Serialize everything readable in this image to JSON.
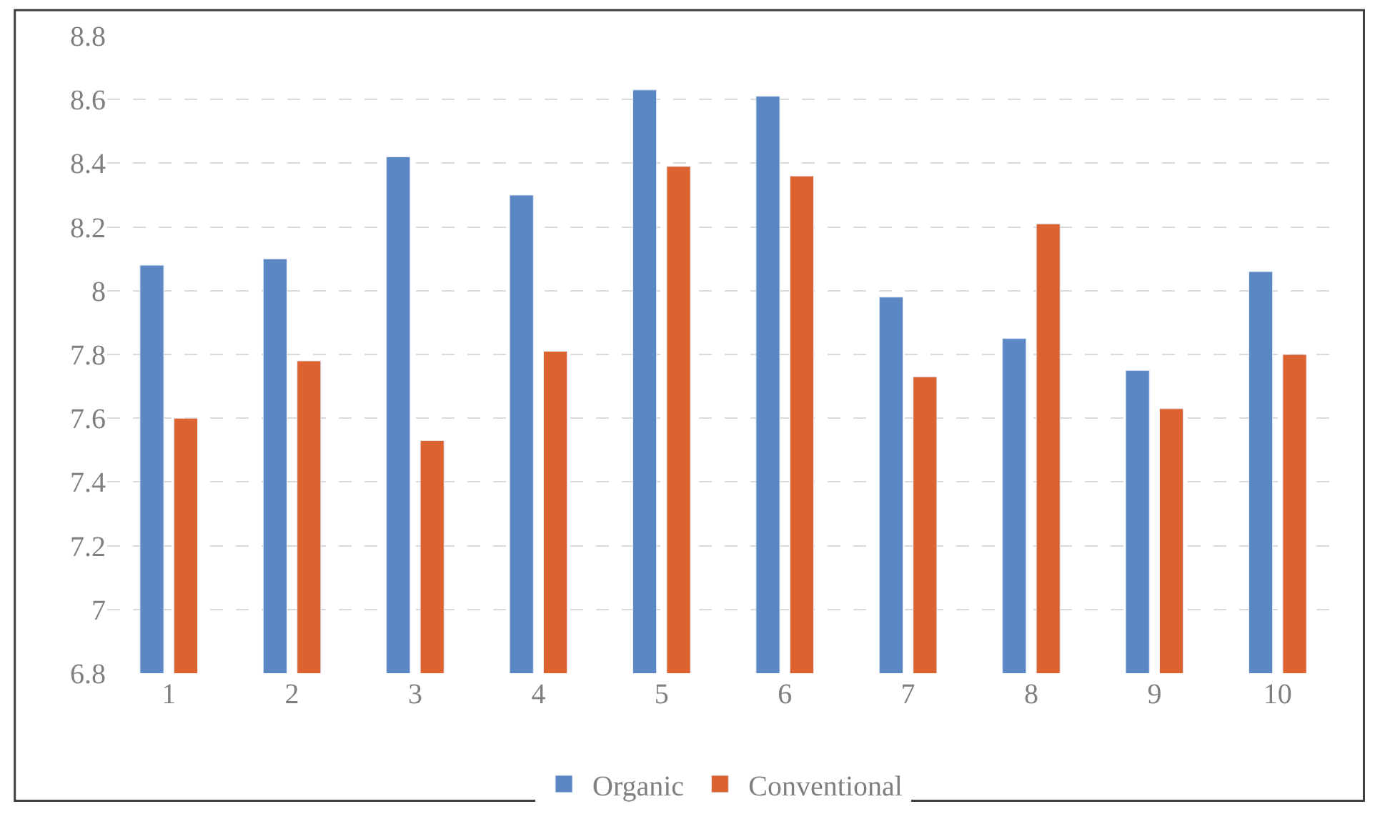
{
  "chart_data": {
    "type": "bar",
    "categories": [
      "1",
      "2",
      "3",
      "4",
      "5",
      "6",
      "7",
      "8",
      "9",
      "10"
    ],
    "series": [
      {
        "name": "Organic",
        "color": "#5b87c5",
        "values": [
          8.08,
          8.1,
          8.42,
          8.3,
          8.63,
          8.61,
          7.98,
          7.85,
          7.75,
          8.06
        ]
      },
      {
        "name": "Conventional",
        "color": "#dc6230",
        "values": [
          7.6,
          7.78,
          7.53,
          7.81,
          8.39,
          8.36,
          7.73,
          8.21,
          7.63,
          7.8
        ]
      }
    ],
    "ylim": [
      6.8,
      8.8
    ],
    "yticks": [
      6.8,
      7,
      7.2,
      7.4,
      7.6,
      7.8,
      8,
      8.2,
      8.4,
      8.6,
      8.8
    ],
    "grid": "y",
    "legend": "bottom"
  }
}
